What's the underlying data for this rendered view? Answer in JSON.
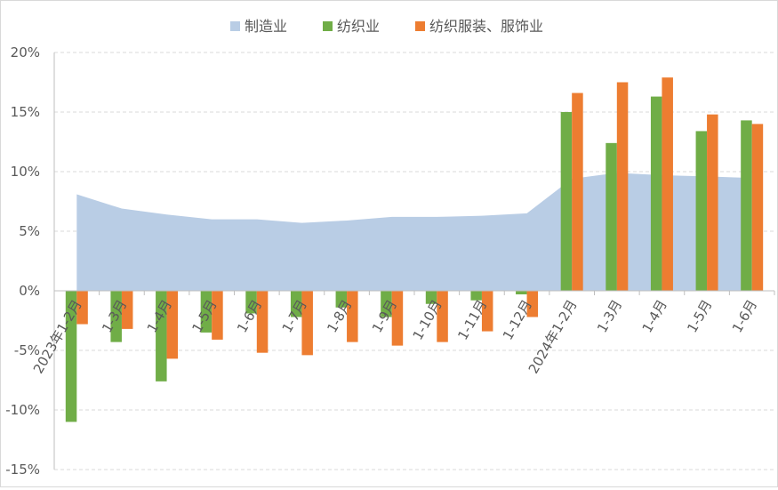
{
  "chart_data": {
    "type": "bar",
    "title": "",
    "xlabel": "",
    "ylabel": "",
    "ylim": [
      -15,
      20
    ],
    "ytick_step": 5,
    "ytick_suffix": "%",
    "grid": true,
    "legend_position": "top",
    "categories": [
      "2023年1-2月",
      "1-3月",
      "1-4月",
      "1-5月",
      "1-6月",
      "1-7月",
      "1-8月",
      "1-9月",
      "1-10月",
      "1-11月",
      "1-12月",
      "2024年1-2月",
      "1-3月",
      "1-4月",
      "1-5月",
      "1-6月"
    ],
    "series": [
      {
        "name": "制造业",
        "kind": "area",
        "color": "#b9cde5",
        "values": [
          8.1,
          6.9,
          6.4,
          6.0,
          6.0,
          5.7,
          5.9,
          6.2,
          6.2,
          6.3,
          6.5,
          9.4,
          9.9,
          9.7,
          9.6,
          9.5
        ]
      },
      {
        "name": "纺织业",
        "kind": "bar",
        "color": "#70ad47",
        "values": [
          -11.0,
          -4.3,
          -7.6,
          -3.5,
          -1.9,
          -2.2,
          -1.4,
          -2.2,
          -1.1,
          -0.8,
          -0.3,
          15.0,
          12.4,
          16.3,
          13.4,
          14.3
        ]
      },
      {
        "name": "纺织服装、服饰业",
        "kind": "bar",
        "color": "#ed7d31",
        "values": [
          -2.8,
          -3.2,
          -5.7,
          -4.1,
          -5.2,
          -5.4,
          -4.3,
          -4.6,
          -4.3,
          -3.4,
          -2.2,
          16.6,
          17.5,
          17.9,
          14.8,
          14.0
        ]
      }
    ]
  }
}
